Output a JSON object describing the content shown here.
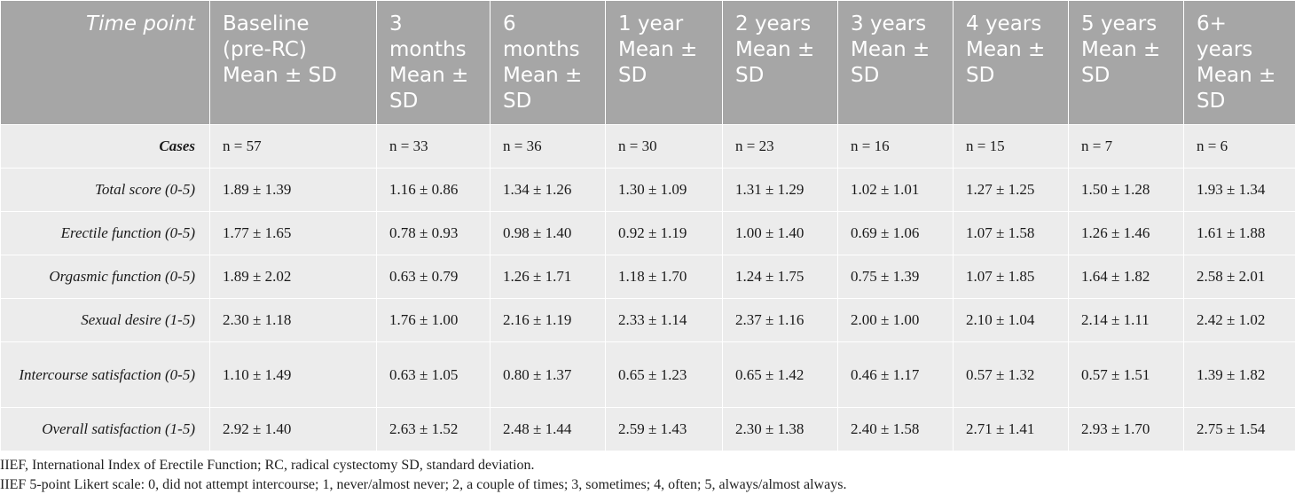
{
  "table": {
    "headers": [
      "Time point",
      "Baseline (pre-RC) Mean ± SD",
      "3 months Mean ± SD",
      "6 months Mean ± SD",
      "1 year Mean ± SD",
      "2 years Mean ± SD",
      "3 years Mean ± SD",
      "4 years Mean ± SD",
      "5 years Mean ± SD",
      "6+ years Mean ± SD"
    ],
    "rows": [
      {
        "label": "Cases",
        "bold": true,
        "values": [
          "n = 57",
          "n = 33",
          "n = 36",
          "n = 30",
          "n = 23",
          "n = 16",
          "n = 15",
          "n = 7",
          "n = 6"
        ]
      },
      {
        "label": "Total score (0-5)",
        "values": [
          "1.89 ± 1.39",
          "1.16 ± 0.86",
          "1.34 ± 1.26",
          "1.30 ± 1.09",
          "1.31 ± 1.29",
          "1.02 ± 1.01",
          "1.27 ± 1.25",
          "1.50 ± 1.28",
          "1.93 ± 1.34"
        ]
      },
      {
        "label": "Erectile function (0-5)",
        "values": [
          "1.77 ± 1.65",
          "0.78 ± 0.93",
          "0.98 ± 1.40",
          "0.92 ± 1.19",
          "1.00 ± 1.40",
          "0.69 ± 1.06",
          "1.07 ± 1.58",
          "1.26 ± 1.46",
          "1.61 ± 1.88"
        ]
      },
      {
        "label": "Orgasmic function (0-5)",
        "values": [
          "1.89 ± 2.02",
          "0.63 ± 0.79",
          "1.26 ± 1.71",
          "1.18 ± 1.70",
          "1.24 ± 1.75",
          "0.75 ± 1.39",
          "1.07 ± 1.85",
          "1.64 ± 1.82",
          "2.58 ± 2.01"
        ]
      },
      {
        "label": "Sexual desire (1-5)",
        "values": [
          "2.30 ± 1.18",
          "1.76 ± 1.00",
          "2.16 ± 1.19",
          "2.33 ± 1.14",
          "2.37 ± 1.16",
          "2.00 ± 1.00",
          "2.10 ± 1.04",
          "2.14 ± 1.11",
          "2.42 ± 1.02"
        ]
      },
      {
        "label": "Intercourse satisfaction (0-5)",
        "tall": true,
        "values": [
          "1.10 ± 1.49",
          "0.63 ± 1.05",
          "0.80 ± 1.37",
          "0.65 ± 1.23",
          "0.65 ± 1.42",
          "0.46 ± 1.17",
          "0.57 ± 1.32",
          "0.57 ± 1.51",
          "1.39 ± 1.82"
        ]
      },
      {
        "label": "Overall satisfaction (1-5)",
        "values": [
          "2.92 ± 1.40",
          "2.63 ± 1.52",
          "2.48 ± 1.44",
          "2.59 ± 1.43",
          "2.30 ± 1.38",
          "2.40 ± 1.58",
          "2.71 ± 1.41",
          "2.93 ± 1.70",
          "2.75 ± 1.54"
        ]
      }
    ]
  },
  "notes": [
    "IIEF, International Index of Erectile Function; RC, radical cystectomy SD, standard deviation.",
    "IIEF 5-point Likert scale: 0, did not attempt intercourse; 1, never/almost never; 2, a couple of times; 3, sometimes; 4, often; 5, always/almost always."
  ]
}
